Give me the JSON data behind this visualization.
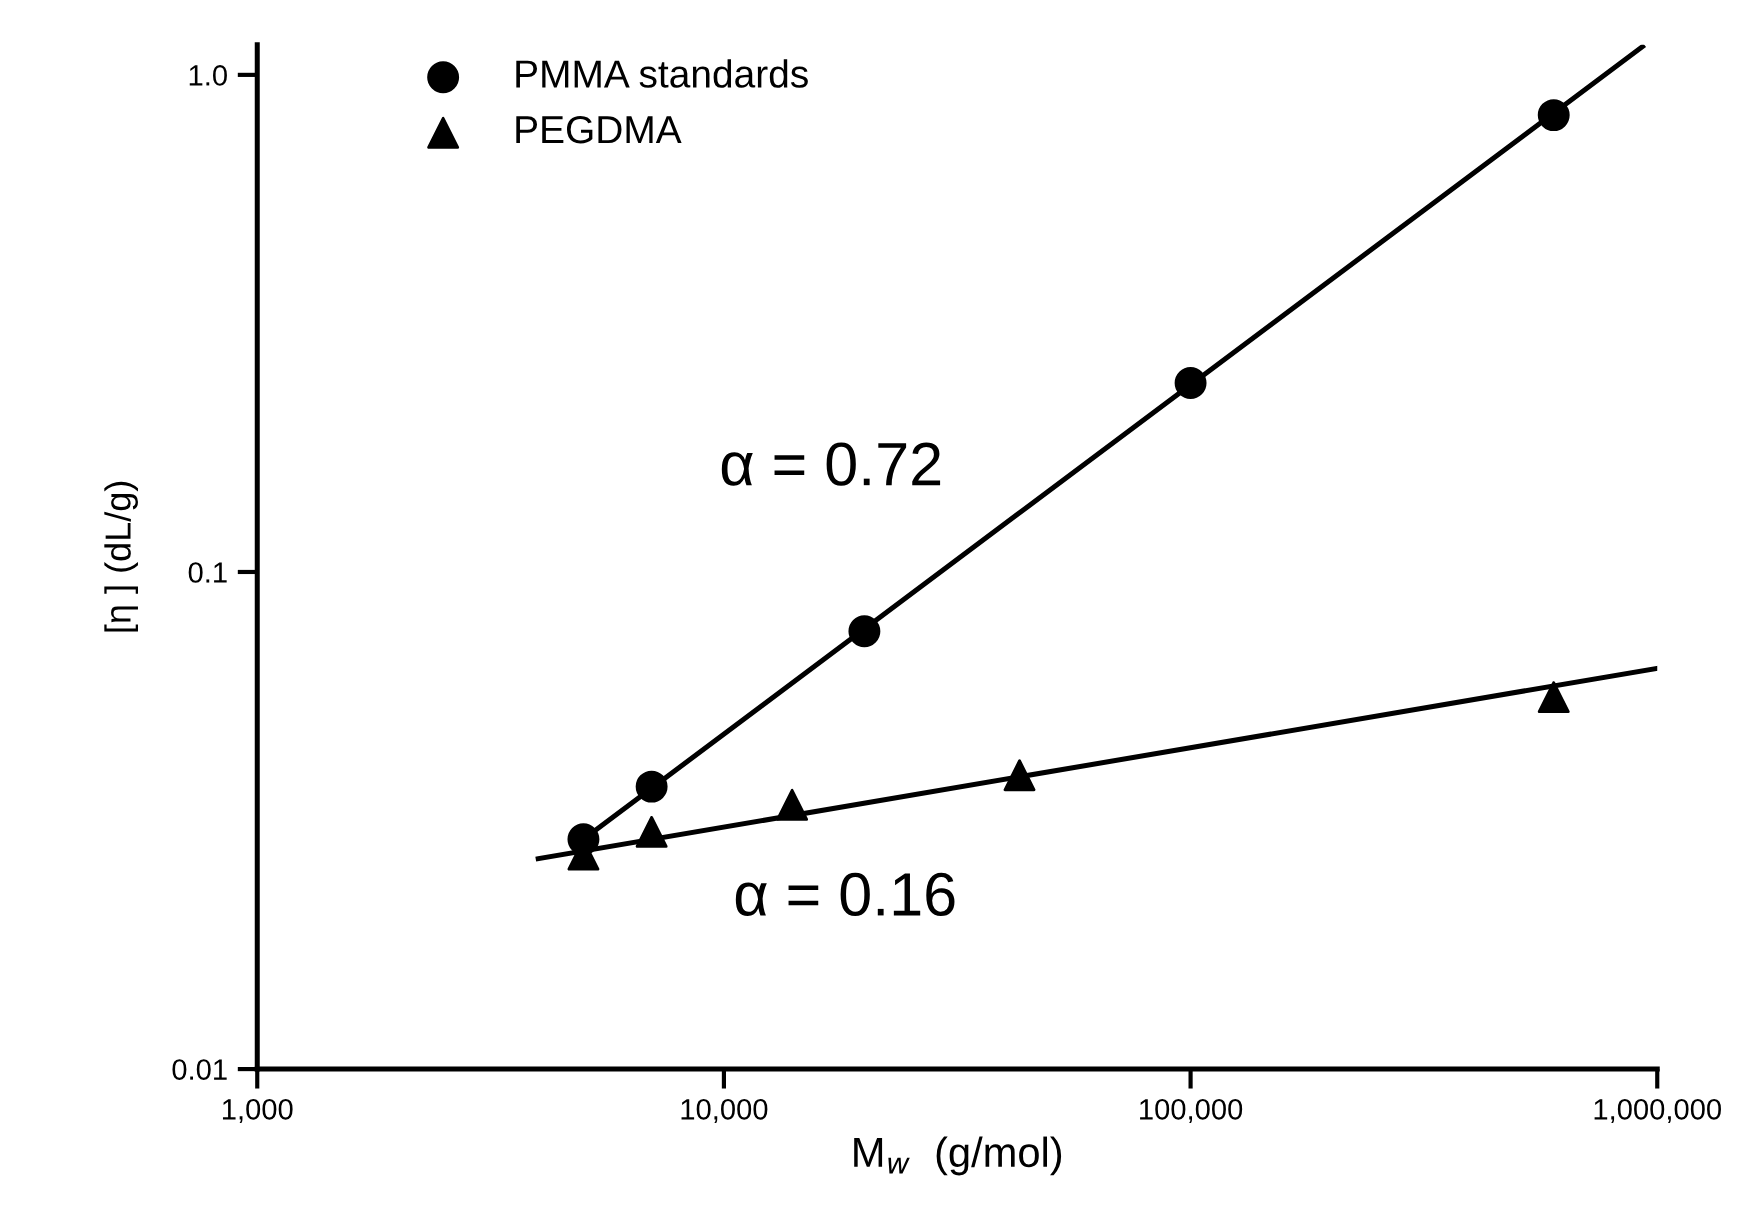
{
  "chart_data": {
    "type": "scatter",
    "xlabel": "M$_{w}$  (g/mol)",
    "ylabel": "[η ] (dL/g)",
    "log": "xy",
    "grid": false,
    "legend": "top left",
    "xlim": [
      1000,
      1000000
    ],
    "ylim": [
      0.01,
      1.15
    ],
    "xticks": [
      {
        "value": 1000,
        "label": "1,000"
      },
      {
        "value": 10000,
        "label": "10,000"
      },
      {
        "value": 100000,
        "label": "100,000"
      },
      {
        "value": 1000000,
        "label": "1,000,000"
      }
    ],
    "yticks": [
      0.01,
      0.1,
      {
        "value": 1,
        "label": "1.0"
      }
    ],
    "series": [
      {
        "name": "PMMA standards",
        "marker": "circle",
        "color": "#000000",
        "x": [
          5000,
          7000,
          20000,
          100000,
          600000
        ],
        "values": [
          0.029,
          0.037,
          0.076,
          0.24,
          0.83
        ]
      },
      {
        "name": "PEGDMA",
        "marker": "triangle",
        "color": "#000000",
        "x": [
          5000,
          7000,
          14000,
          43000,
          600000
        ],
        "values": [
          0.027,
          0.03,
          0.034,
          0.039,
          0.056
        ]
      },
      {
        "type": "line",
        "marker": "none",
        "line_style": "solid",
        "color": "#000000",
        "x": [
          5000,
          930000
        ],
        "values": [
          0.029,
          1.14
        ]
      },
      {
        "type": "line",
        "marker": "none",
        "line_style": "solid",
        "color": "#000000",
        "x": [
          4000,
          1000000
        ],
        "values": [
          0.0265,
          0.064
        ]
      }
    ],
    "annotations": [
      "α = 0.72",
      "α = 0.16"
    ]
  }
}
